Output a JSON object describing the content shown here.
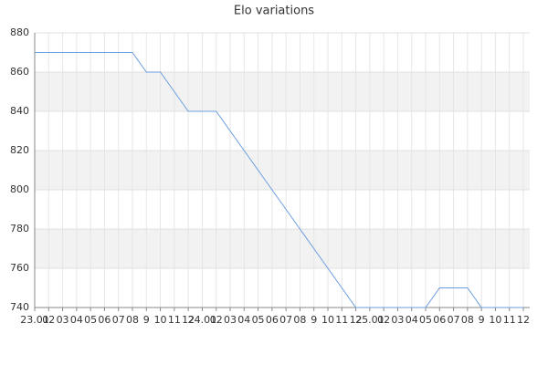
{
  "chart_data": {
    "type": "line",
    "title": "Elo variations",
    "categories": [
      "23.01",
      "02",
      "03",
      "04",
      "05",
      "06",
      "07",
      "08",
      "9",
      "10",
      "11",
      "12",
      "24.01",
      "02",
      "03",
      "04",
      "05",
      "06",
      "07",
      "08",
      "9",
      "10",
      "11",
      "12",
      "25.01",
      "02",
      "03",
      "04",
      "05",
      "06",
      "07",
      "08",
      "9",
      "10",
      "11",
      "12"
    ],
    "values": [
      870,
      870,
      870,
      870,
      870,
      870,
      870,
      870,
      860,
      860,
      850,
      840,
      840,
      840,
      830,
      820,
      810,
      800,
      790,
      780,
      770,
      760,
      750,
      740,
      740,
      740,
      740,
      740,
      740,
      750,
      750,
      750,
      740,
      740,
      740,
      740
    ],
    "color": "#6a9ee0",
    "ylim": [
      740,
      880
    ],
    "yticks": [
      740,
      760,
      780,
      800,
      820,
      840,
      860,
      880
    ],
    "grid": true
  }
}
